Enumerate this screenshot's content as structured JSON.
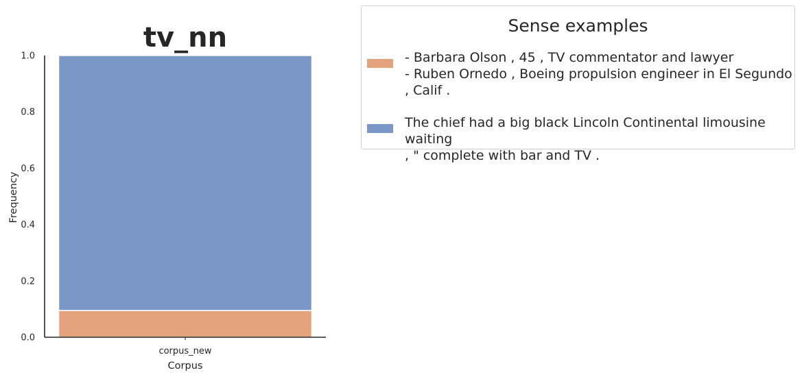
{
  "chart_data": {
    "type": "bar",
    "stacked": true,
    "title": "tv_nn",
    "xlabel": "Corpus",
    "ylabel": "Frequency",
    "categories": [
      "corpus_new"
    ],
    "ylim": [
      0,
      1.0
    ],
    "yticks": [
      "0.0",
      "0.2",
      "0.4",
      "0.6",
      "0.8",
      "1.0"
    ],
    "grid": false,
    "legend_position": "right",
    "series": [
      {
        "name": "- Barbara Olson , 45 , TV commentator and lawyer\n- Ruben Ornedo , Boeing propulsion engineer in El Segundo\n, Calif .",
        "values": [
          0.095
        ],
        "color": "#e5a37d"
      },
      {
        "name": "The chief had a big black Lincoln Continental limousine waiting\n, \" complete with bar and TV .",
        "values": [
          0.905
        ],
        "color": "#7a97c6"
      }
    ]
  },
  "legend": {
    "title": "Sense examples"
  }
}
